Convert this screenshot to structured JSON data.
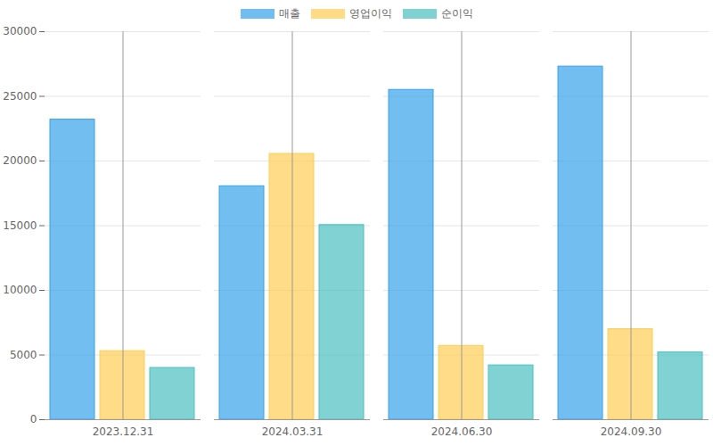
{
  "chart_data": {
    "type": "bar",
    "categories": [
      "2023.12.31",
      "2024.03.31",
      "2024.06.30",
      "2024.09.30"
    ],
    "series": [
      {
        "name": "매출",
        "color": "#36a2eb",
        "values": [
          23200,
          18050,
          25500,
          27300
        ]
      },
      {
        "name": "영업이익",
        "color": "#ffcd56",
        "values": [
          5300,
          20550,
          5700,
          7000
        ]
      },
      {
        "name": "순이익",
        "color": "#4bc0c0",
        "values": [
          4000,
          15050,
          4200,
          5200
        ]
      }
    ],
    "ylim": [
      0,
      30000
    ],
    "yticks": [
      0,
      5000,
      10000,
      15000,
      20000,
      25000,
      30000
    ],
    "grid": true,
    "legend": "top"
  }
}
